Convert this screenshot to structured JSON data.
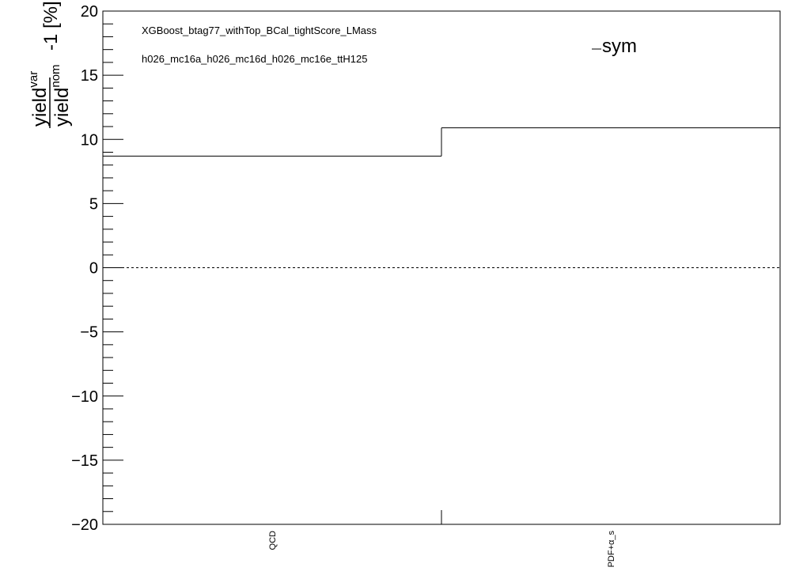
{
  "chart_data": {
    "type": "step",
    "categories": [
      "QCD",
      "PDF+α_s"
    ],
    "series": [
      {
        "name": "sym",
        "values": [
          8.7,
          10.9
        ]
      }
    ],
    "ylim": [
      -20,
      20
    ],
    "yticks": [
      -20,
      -15,
      -10,
      -5,
      0,
      5,
      10,
      15,
      20
    ],
    "reference_line": 0,
    "annotations": [
      "XGBoost_btag77_withTop_BCal_tightScore_LMass",
      "h026_mc16a_h026_mc16d_h026_mc16e_ttH125"
    ],
    "ylabel": {
      "numerator": "yield",
      "numerator_sup": "var",
      "denominator": "yield",
      "denominator_sup": "nom",
      "suffix": "-1 [%]"
    },
    "legend": {
      "placement": "top-right"
    },
    "grid": false
  }
}
